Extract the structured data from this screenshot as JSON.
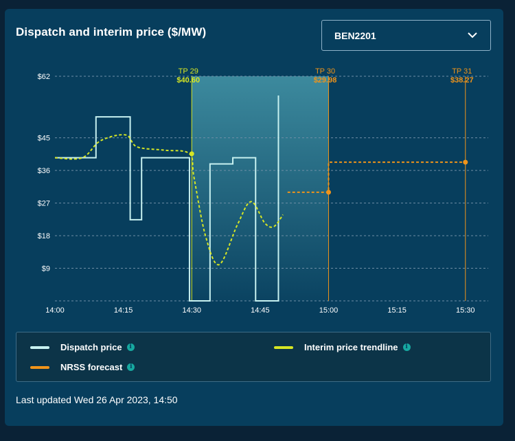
{
  "card": {
    "title": "Dispatch and interim price ($/MW)",
    "selector": {
      "value": "BEN2201",
      "icon": "chevron-down-icon"
    },
    "last_updated": "Last updated Wed 26 Apr 2023, 14:50"
  },
  "colors": {
    "dispatch": "#c7f1f0",
    "trend": "#d6e624",
    "nrss": "#f0941a",
    "grid": "#6f8fa6",
    "text": "#ffffff",
    "info": "#17a9a0"
  },
  "legend": [
    {
      "label": "Dispatch price",
      "color": "#c7f1f0",
      "icon": "info-icon"
    },
    {
      "label": "Interim price trendline",
      "color": "#d6e624",
      "icon": "info-icon"
    },
    {
      "label": "NRSS forecast",
      "color": "#f0941a",
      "icon": "info-icon"
    }
  ],
  "chart_data": {
    "type": "line",
    "x_ticks": [
      "14:00",
      "14:15",
      "14:30",
      "14:45",
      "15:00",
      "15:15",
      "15:30"
    ],
    "y_ticks": [
      "$62",
      "$45",
      "$36",
      "$27",
      "$18",
      "$9"
    ],
    "y_tick_values": [
      62,
      45,
      36,
      27,
      18,
      9
    ],
    "xlim": [
      "14:00",
      "15:35"
    ],
    "ylim": [
      0,
      62
    ],
    "grid": true,
    "series": [
      {
        "name": "Dispatch price",
        "style": "step",
        "points": [
          [
            "14:00",
            39.5
          ],
          [
            "14:09",
            39.5
          ],
          [
            "14:09",
            50.8
          ],
          [
            "14:16.5",
            50.8
          ],
          [
            "14:16.5",
            22.4
          ],
          [
            "14:19",
            22.4
          ],
          [
            "14:19",
            39.5
          ],
          [
            "14:29.5",
            39.5
          ],
          [
            "14:29.5",
            0
          ],
          [
            "14:34",
            0
          ],
          [
            "14:34",
            37.8
          ],
          [
            "14:39",
            37.8
          ],
          [
            "14:39",
            39.5
          ],
          [
            "14:44",
            39.5
          ],
          [
            "14:44",
            0
          ],
          [
            "14:49",
            0
          ],
          [
            "14:49",
            56.7
          ]
        ]
      },
      {
        "name": "Interim price trendline",
        "style": "dashed",
        "points": [
          [
            "14:00",
            39.5
          ],
          [
            "14:06",
            39.5
          ],
          [
            "14:10",
            44.2
          ],
          [
            "14:15.5",
            45.8
          ],
          [
            "14:18",
            42.5
          ],
          [
            "14:24",
            41.6
          ],
          [
            "14:29.5",
            40.6
          ],
          [
            "14:30.5",
            34
          ],
          [
            "14:33",
            18
          ],
          [
            "14:36",
            10
          ],
          [
            "14:40",
            21
          ],
          [
            "14:43",
            27.4
          ],
          [
            "14:46",
            21.5
          ],
          [
            "14:48",
            20.5
          ],
          [
            "14:50",
            23.8
          ]
        ]
      },
      {
        "name": "NRSS forecast",
        "style": "dashed",
        "points": [
          [
            "14:51",
            29.98
          ],
          [
            "15:00",
            29.98
          ],
          [
            "15:00",
            38.27
          ],
          [
            "15:30",
            38.27
          ]
        ]
      }
    ],
    "trading_periods": [
      {
        "label": "TP 29",
        "price": "$40.60",
        "time": "14:30",
        "value": 40.6,
        "color": "#d6e624"
      },
      {
        "label": "TP 30",
        "price": "$29.98",
        "time": "15:00",
        "value": 29.98,
        "color": "#f0941a"
      },
      {
        "label": "TP 31",
        "price": "$38.27",
        "time": "15:30",
        "value": 38.27,
        "color": "#f0941a"
      }
    ],
    "highlight_range": [
      "14:30",
      "15:00"
    ]
  }
}
